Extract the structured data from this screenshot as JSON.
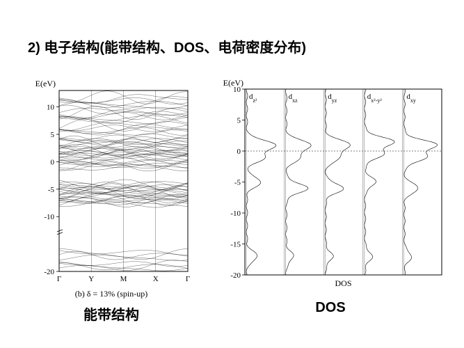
{
  "title": "2) 电子结构(能带结构、DOS、电荷密度分布)",
  "band_chart": {
    "type": "line",
    "ylabel": "E(eV)",
    "ylim": [
      -20,
      13
    ],
    "yticks": [
      -20,
      -10,
      -5,
      0,
      5,
      10
    ],
    "xticks": [
      "Γ",
      "Y",
      "M",
      "X",
      "Γ"
    ],
    "xpositions": [
      0,
      0.25,
      0.5,
      0.75,
      1.0
    ],
    "sub_caption": "(b) δ = 13% (spin-up)",
    "caption": "能带结构",
    "caption_fontsize": 20,
    "line_color": "#000000",
    "background_color": "#ffffff",
    "frame_color": "#000000",
    "band_groups": [
      {
        "y_center": 11,
        "spread": 1.5,
        "count": 6
      },
      {
        "y_center": 8.5,
        "spread": 1.8,
        "count": 8
      },
      {
        "y_center": 6,
        "spread": 1.2,
        "count": 6
      },
      {
        "y_center": 3.5,
        "spread": 1.5,
        "count": 10
      },
      {
        "y_center": 1.5,
        "spread": 1.2,
        "count": 12
      },
      {
        "y_center": -0.5,
        "spread": 1.0,
        "count": 8
      },
      {
        "y_center": -5,
        "spread": 1.8,
        "count": 14
      },
      {
        "y_center": -7,
        "spread": 1.2,
        "count": 10
      },
      {
        "y_center": -17,
        "spread": 1.0,
        "count": 4
      },
      {
        "y_center": -19,
        "spread": 0.8,
        "count": 4
      }
    ]
  },
  "dos_chart": {
    "type": "line",
    "ylabel": "E(eV)",
    "xlabel": "DOS",
    "ylim": [
      -20,
      10
    ],
    "yticks": [
      -20,
      -15,
      -10,
      -5,
      0,
      5,
      10
    ],
    "panels": [
      "d_z²",
      "d_xz",
      "d_yz",
      "d_x²-y²",
      "d_xy"
    ],
    "caption": "DOS",
    "caption_fontsize": 20,
    "line_color": "#000000",
    "background_color": "#ffffff",
    "fermi_line_y": 0,
    "peaks": {
      "d_z²": [
        {
          "y": 1,
          "h": 0.8
        },
        {
          "y": -1,
          "h": 0.5
        },
        {
          "y": -5,
          "h": 0.4
        },
        {
          "y": -17,
          "h": 0.3
        }
      ],
      "d_xz": [
        {
          "y": 1,
          "h": 0.7
        },
        {
          "y": -1,
          "h": 0.4
        },
        {
          "y": -6,
          "h": 0.6
        },
        {
          "y": -17,
          "h": 0.2
        }
      ],
      "d_yz": [
        {
          "y": 1,
          "h": 0.7
        },
        {
          "y": -1,
          "h": 0.4
        },
        {
          "y": -6,
          "h": 0.5
        },
        {
          "y": -17,
          "h": 0.2
        }
      ],
      "d_x²-y²": [
        {
          "y": 1.5,
          "h": 0.8
        },
        {
          "y": -0.5,
          "h": 0.5
        },
        {
          "y": -5,
          "h": 0.3
        },
        {
          "y": -17,
          "h": 0.2
        }
      ],
      "d_xy": [
        {
          "y": 1,
          "h": 0.9
        },
        {
          "y": -1,
          "h": 0.6
        },
        {
          "y": -6,
          "h": 0.4
        },
        {
          "y": -17,
          "h": 0.2
        }
      ]
    }
  }
}
